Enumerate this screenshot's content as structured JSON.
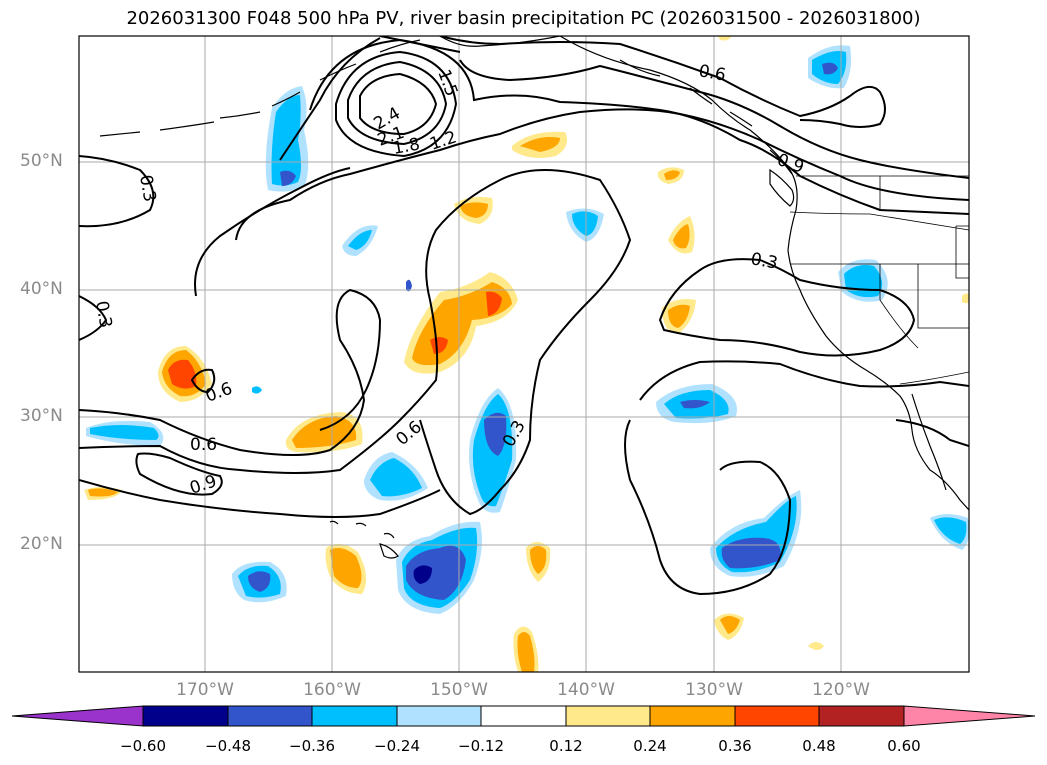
{
  "title": "2026031300 F048 500 hPa PV, river basin precipitation PC (2026031500 - 2026031800)",
  "lat_labels": [
    "50°N",
    "40°N",
    "30°N",
    "20°N"
  ],
  "lon_labels": [
    "170°W",
    "160°W",
    "150°W",
    "140°W",
    "130°W",
    "120°W"
  ],
  "contour_labels": [
    "1.5",
    "0.6",
    "2.4",
    "2.1",
    "1.8",
    "1.2",
    "0.9",
    "0.3",
    "0.3",
    "0.3",
    "0.6",
    "0.6",
    "0.9",
    "0.6",
    "0.3"
  ],
  "colorbar": {
    "ticks": [
      "−0.60",
      "−0.48",
      "−0.36",
      "−0.24",
      "−0.12",
      "0.12",
      "0.24",
      "0.36",
      "0.48",
      "0.60"
    ],
    "colors": [
      "#9933cc",
      "#00008b",
      "#3355cc",
      "#00bfff",
      "#b0e2ff",
      "#ffffff",
      "#ffe98a",
      "#ffa500",
      "#ff4500",
      "#b22222",
      "#ff85a8"
    ]
  },
  "colors": {
    "pv_contour": "#000000",
    "grid": "#aaaaaa",
    "coast": "#000000",
    "axis_label": "#8a8a8a"
  }
}
